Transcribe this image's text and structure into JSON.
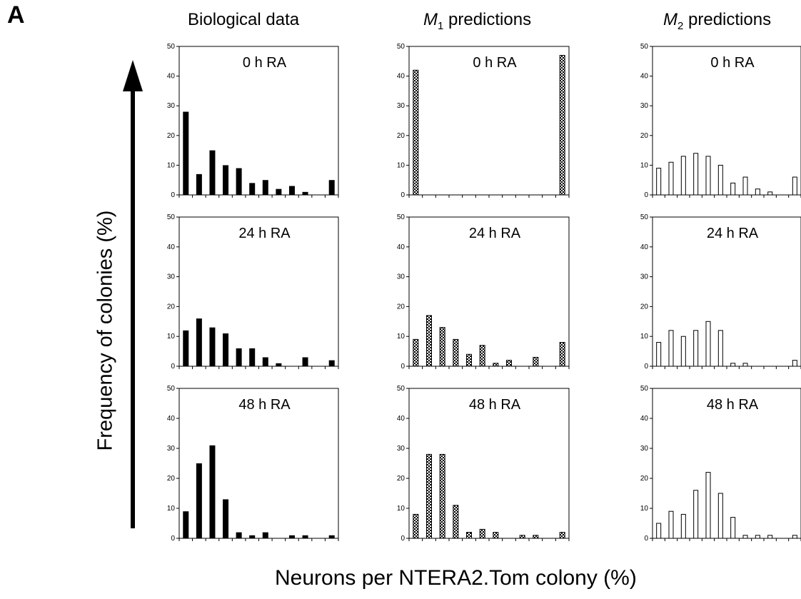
{
  "panel_letter": "A",
  "column_titles": [
    {
      "text": "Biological data"
    },
    {
      "italic": "M",
      "sub": "1",
      "rest": " predictions"
    },
    {
      "italic": "M",
      "sub": "2",
      "rest": " predictions"
    }
  ],
  "y_axis_label": "Frequency of colonies (%)",
  "x_axis_label": "Neurons per NTERA2.Tom colony (%)",
  "colors": {
    "biological": "#000000",
    "m1_fill": "#9a9a9a",
    "m2_fill": "#ffffff",
    "stroke": "#000000"
  },
  "chart_data": [
    {
      "type": "bar",
      "title": "0 h RA",
      "column": "Biological data",
      "style": "solid",
      "ylim": [
        0,
        50
      ],
      "yticks": [
        0,
        10,
        20,
        30,
        40,
        50
      ],
      "values": [
        28,
        7,
        15,
        10,
        9,
        4,
        5,
        2,
        3,
        1,
        0,
        5
      ]
    },
    {
      "type": "bar",
      "title": "24 h RA",
      "column": "Biological data",
      "style": "solid",
      "ylim": [
        0,
        50
      ],
      "yticks": [
        0,
        10,
        20,
        30,
        40,
        50
      ],
      "values": [
        12,
        16,
        13,
        11,
        6,
        6,
        3,
        1,
        0,
        3,
        0,
        2
      ]
    },
    {
      "type": "bar",
      "title": "48 h RA",
      "column": "Biological data",
      "style": "solid",
      "ylim": [
        0,
        50
      ],
      "yticks": [
        0,
        10,
        20,
        30,
        40,
        50
      ],
      "values": [
        9,
        25,
        31,
        13,
        2,
        1,
        2,
        0,
        1,
        1,
        0,
        1
      ]
    },
    {
      "type": "bar",
      "title": "0 h RA",
      "column": "M1 predictions",
      "style": "checkered",
      "ylim": [
        0,
        50
      ],
      "yticks": [
        0,
        10,
        20,
        30,
        40,
        50
      ],
      "values": [
        42,
        0,
        0,
        0,
        0,
        0,
        0,
        0,
        0,
        0,
        0,
        47
      ]
    },
    {
      "type": "bar",
      "title": "24 h RA",
      "column": "M1 predictions",
      "style": "checkered",
      "ylim": [
        0,
        50
      ],
      "yticks": [
        0,
        10,
        20,
        30,
        40,
        50
      ],
      "values": [
        9,
        17,
        13,
        9,
        4,
        7,
        1,
        2,
        0,
        3,
        0,
        8
      ]
    },
    {
      "type": "bar",
      "title": "48 h RA",
      "column": "M1 predictions",
      "style": "checkered",
      "ylim": [
        0,
        50
      ],
      "yticks": [
        0,
        10,
        20,
        30,
        40,
        50
      ],
      "values": [
        8,
        28,
        28,
        11,
        2,
        3,
        2,
        0,
        1,
        1,
        0,
        2
      ]
    },
    {
      "type": "bar",
      "title": "0 h RA",
      "column": "M2 predictions",
      "style": "open",
      "ylim": [
        0,
        50
      ],
      "yticks": [
        0,
        10,
        20,
        30,
        40,
        50
      ],
      "values": [
        9,
        11,
        13,
        14,
        13,
        10,
        4,
        6,
        2,
        1,
        0,
        6
      ]
    },
    {
      "type": "bar",
      "title": "24 h RA",
      "column": "M2 predictions",
      "style": "open",
      "ylim": [
        0,
        50
      ],
      "yticks": [
        0,
        10,
        20,
        30,
        40,
        50
      ],
      "values": [
        8,
        12,
        10,
        12,
        15,
        12,
        1,
        1,
        0,
        0,
        0,
        2
      ]
    },
    {
      "type": "bar",
      "title": "48 h RA",
      "column": "M2 predictions",
      "style": "open",
      "ylim": [
        0,
        50
      ],
      "yticks": [
        0,
        10,
        20,
        30,
        40,
        50
      ],
      "values": [
        5,
        9,
        8,
        16,
        22,
        15,
        7,
        1,
        1,
        1,
        0,
        1
      ]
    }
  ]
}
